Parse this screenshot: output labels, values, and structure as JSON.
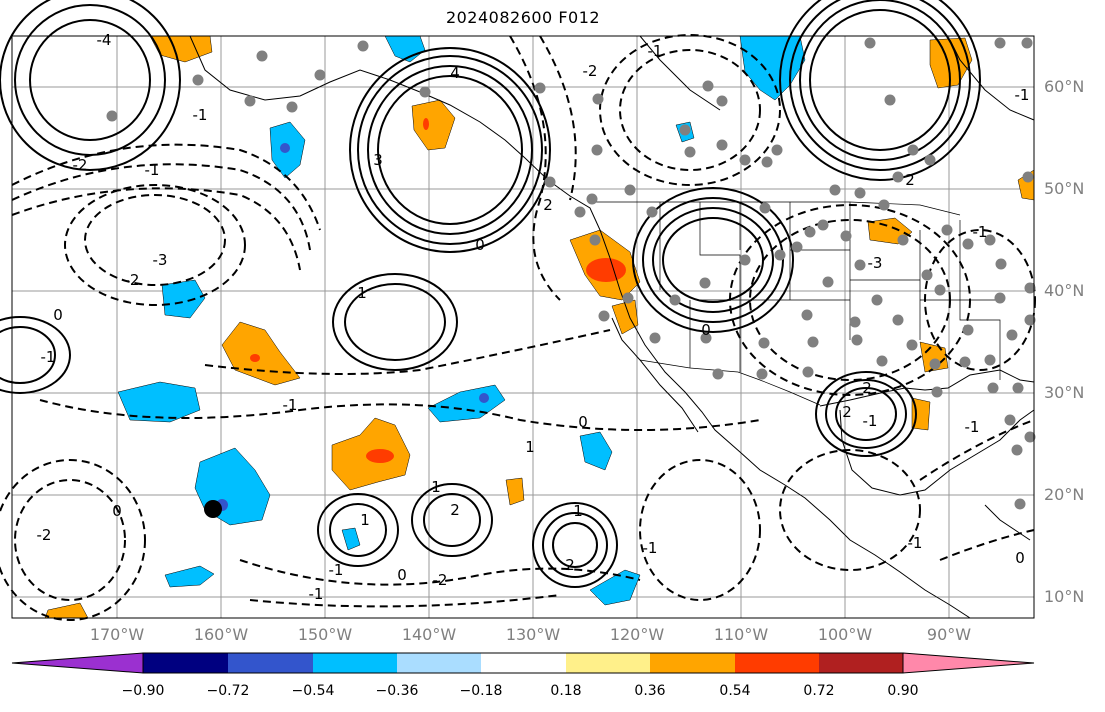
{
  "title": "2024082600 F012",
  "lat_labels": [
    "60°N",
    "50°N",
    "40°N",
    "30°N",
    "20°N",
    "10°N"
  ],
  "lon_labels": [
    "170°W",
    "160°W",
    "150°W",
    "140°W",
    "130°W",
    "120°W",
    "110°W",
    "100°W",
    "90°W"
  ],
  "colorbar": {
    "ticks": [
      "−0.90",
      "−0.72",
      "−0.54",
      "−0.36",
      "−0.18",
      "0.18",
      "0.36",
      "0.54",
      "0.72",
      "0.90"
    ],
    "colors": [
      "#9b30d0",
      "#000080",
      "#3355cc",
      "#00bfff",
      "#aaddff",
      "#ffffff",
      "#fff08a",
      "#ffa500",
      "#ff3c00",
      "#b02020",
      "#ff88aa"
    ]
  },
  "contour_labels": [
    "-4",
    "-2",
    "-1",
    "-3",
    "-2",
    "0",
    "-1",
    "1",
    "3",
    "4",
    "-1",
    "-2",
    "0",
    "2",
    "-1",
    "1",
    "0",
    "-2",
    "-1",
    "-1",
    "-1",
    "2",
    "1",
    "0",
    "-3",
    "2",
    "1",
    "-1",
    "2",
    "-2",
    "0",
    "-1",
    "2",
    "-1",
    "1",
    "-1",
    "0",
    "2",
    "-1",
    "0",
    "-1"
  ],
  "fill_colors": {
    "blue": "#00bfff",
    "light_blue": "#aaddff",
    "orange": "#ffa500",
    "red_orange": "#ff3c00",
    "purple": "#3355cc",
    "station": "#808080",
    "marker": "#000000"
  }
}
